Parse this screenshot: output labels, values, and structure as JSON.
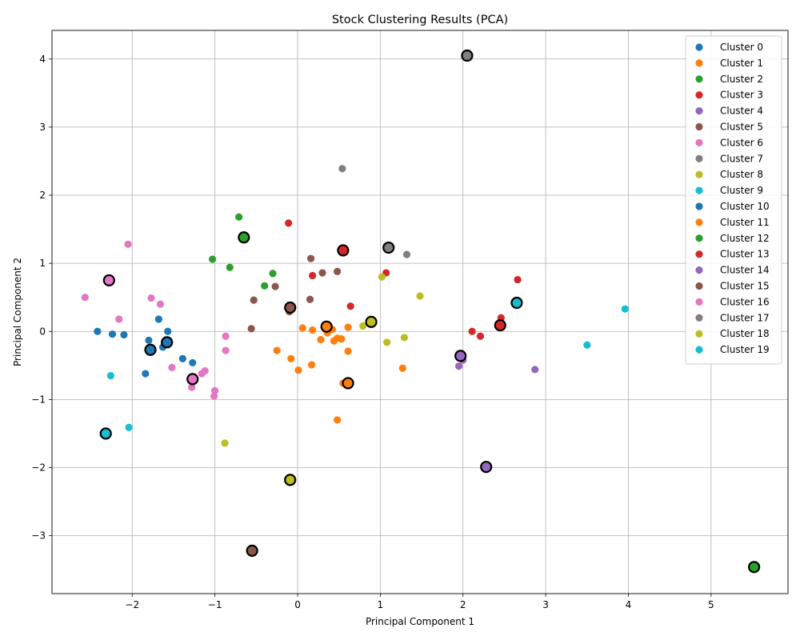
{
  "chart_data": {
    "type": "scatter",
    "title": "Stock Clustering Results (PCA)",
    "xlabel": "Principal Component 1",
    "ylabel": "Principal Component 2",
    "xlim": [
      -2.97,
      5.93
    ],
    "ylim": [
      -3.85,
      4.42
    ],
    "xticks": [
      -2,
      -1,
      0,
      1,
      2,
      3,
      4,
      5
    ],
    "yticks": [
      -3,
      -2,
      -1,
      0,
      1,
      2,
      3,
      4
    ],
    "grid": true,
    "legend_position": "top-right",
    "series": [
      {
        "name": "Cluster 0",
        "color": "#1f77b4",
        "points": [
          [
            -2.42,
            0.0
          ],
          [
            -2.24,
            -0.04
          ],
          [
            -2.1,
            -0.05
          ],
          [
            -1.8,
            -0.13
          ],
          [
            -1.63,
            -0.23
          ],
          [
            -1.57,
            0.0
          ],
          [
            -1.39,
            -0.4
          ],
          [
            -1.27,
            -0.46
          ],
          [
            -1.84,
            -0.62
          ],
          [
            -1.68,
            0.18
          ],
          [
            -1.56,
            -0.14
          ]
        ],
        "center": [
          -1.58,
          -0.16
        ]
      },
      {
        "name": "Cluster 1",
        "color": "#ff7f0e",
        "points": [
          [
            0.06,
            0.05
          ],
          [
            0.18,
            0.02
          ],
          [
            0.28,
            -0.12
          ],
          [
            0.36,
            -0.02
          ],
          [
            0.44,
            -0.14
          ],
          [
            0.53,
            -0.11
          ],
          [
            0.61,
            0.06
          ],
          [
            0.61,
            -0.29
          ],
          [
            -0.25,
            -0.28
          ],
          [
            -0.08,
            -0.4
          ],
          [
            0.01,
            -0.57
          ],
          [
            0.17,
            -0.49
          ],
          [
            1.27,
            -0.54
          ],
          [
            0.48,
            -1.3
          ],
          [
            0.55,
            -0.76
          ],
          [
            0.42,
            0.03
          ],
          [
            0.48,
            -0.1
          ]
        ],
        "center": [
          0.35,
          0.07
        ]
      },
      {
        "name": "Cluster 2",
        "color": "#2ca02c",
        "points": [
          [
            -0.71,
            1.68
          ],
          [
            -1.03,
            1.06
          ],
          [
            -0.82,
            0.94
          ],
          [
            -0.3,
            0.85
          ],
          [
            -0.4,
            0.67
          ],
          [
            -0.66,
            1.38
          ]
        ],
        "center": [
          -0.65,
          1.38
        ]
      },
      {
        "name": "Cluster 3",
        "color": "#d62728",
        "points": [
          [
            -0.11,
            1.59
          ],
          [
            0.18,
            0.82
          ],
          [
            0.64,
            0.37
          ],
          [
            1.07,
            0.86
          ],
          [
            0.55,
            1.19
          ]
        ],
        "center": [
          0.55,
          1.19
        ]
      },
      {
        "name": "Cluster 4",
        "color": "#9467bd",
        "points": [
          [
            1.95,
            -0.51
          ],
          [
            2.87,
            -0.56
          ],
          [
            1.97,
            -0.38
          ],
          [
            2.0,
            -0.42
          ]
        ],
        "center": [
          1.97,
          -0.36
        ]
      },
      {
        "name": "Cluster 5",
        "color": "#8c564b",
        "points": [
          [
            0.16,
            1.07
          ],
          [
            0.3,
            0.86
          ],
          [
            0.48,
            0.88
          ],
          [
            -0.27,
            0.66
          ],
          [
            -0.53,
            0.46
          ],
          [
            0.15,
            0.47
          ],
          [
            -0.56,
            0.04
          ],
          [
            -0.1,
            0.29
          ],
          [
            -0.09,
            0.35
          ]
        ],
        "center": [
          -0.09,
          0.35
        ]
      },
      {
        "name": "Cluster 6",
        "color": "#e377c2",
        "points": [
          [
            -2.05,
            1.28
          ],
          [
            -2.57,
            0.5
          ],
          [
            -2.16,
            0.18
          ],
          [
            -1.77,
            0.49
          ],
          [
            -1.66,
            0.4
          ],
          [
            -0.87,
            -0.07
          ],
          [
            -0.87,
            -0.28
          ],
          [
            -1.52,
            -0.53
          ],
          [
            -1.12,
            -0.58
          ],
          [
            -1.16,
            -0.62
          ],
          [
            -1.28,
            -0.82
          ],
          [
            -1.0,
            -0.87
          ],
          [
            -1.01,
            -0.95
          ],
          [
            -1.27,
            -0.7
          ],
          [
            -2.27,
            0.75
          ]
        ],
        "center": [
          -1.27,
          -0.7
        ]
      },
      {
        "name": "Cluster 7",
        "color": "#7f7f7f",
        "points": [
          [
            0.54,
            2.39
          ],
          [
            1.32,
            1.13
          ],
          [
            1.1,
            1.23
          ]
        ],
        "center": [
          1.1,
          1.23
        ]
      },
      {
        "name": "Cluster 8",
        "color": "#bcbd22",
        "points": [
          [
            1.48,
            0.52
          ],
          [
            1.02,
            0.8
          ],
          [
            0.79,
            0.08
          ],
          [
            1.08,
            -0.16
          ],
          [
            1.29,
            -0.09
          ],
          [
            0.9,
            0.14
          ],
          [
            -0.88,
            -1.64
          ],
          [
            -0.09,
            -2.18
          ]
        ],
        "center": [
          0.89,
          0.14
        ]
      },
      {
        "name": "Cluster 9",
        "color": "#17becf",
        "points": [
          [
            3.96,
            0.33
          ],
          [
            3.5,
            -0.2
          ],
          [
            2.65,
            0.42
          ],
          [
            -2.26,
            -0.65
          ],
          [
            -2.04,
            -1.41
          ],
          [
            -2.32,
            -1.5
          ]
        ],
        "center": [
          2.65,
          0.42
        ]
      },
      {
        "name": "Cluster 10",
        "color": "#1f77b4",
        "points": [
          [
            -1.78,
            -0.27
          ]
        ],
        "center": [
          -1.78,
          -0.27
        ]
      },
      {
        "name": "Cluster 11",
        "color": "#ff7f0e",
        "points": [
          [
            0.61,
            -0.76
          ]
        ],
        "center": [
          0.61,
          -0.76
        ]
      },
      {
        "name": "Cluster 12",
        "color": "#2ca02c",
        "points": [
          [
            5.52,
            -3.46
          ]
        ],
        "center": [
          5.52,
          -3.46
        ]
      },
      {
        "name": "Cluster 13",
        "color": "#d62728",
        "points": [
          [
            2.66,
            0.76
          ],
          [
            2.46,
            0.2
          ],
          [
            2.11,
            0.0
          ],
          [
            2.21,
            -0.07
          ],
          [
            2.46,
            0.09
          ]
        ],
        "center": [
          2.45,
          0.09
        ]
      },
      {
        "name": "Cluster 14",
        "color": "#9467bd",
        "points": [
          [
            2.28,
            -1.99
          ]
        ],
        "center": [
          2.28,
          -1.99
        ]
      },
      {
        "name": "Cluster 15",
        "color": "#8c564b",
        "points": [
          [
            -0.55,
            -3.22
          ]
        ],
        "center": [
          -0.55,
          -3.22
        ]
      },
      {
        "name": "Cluster 16",
        "color": "#e377c2",
        "points": [
          [
            -2.28,
            0.75
          ]
        ],
        "center": [
          -2.28,
          0.75
        ]
      },
      {
        "name": "Cluster 17",
        "color": "#7f7f7f",
        "points": [
          [
            2.05,
            4.05
          ]
        ],
        "center": [
          2.05,
          4.05
        ]
      },
      {
        "name": "Cluster 18",
        "color": "#bcbd22",
        "points": [
          [
            -0.09,
            -2.18
          ]
        ],
        "center": [
          -0.09,
          -2.18
        ]
      },
      {
        "name": "Cluster 19",
        "color": "#17becf",
        "points": [
          [
            -2.32,
            -1.5
          ]
        ],
        "center": [
          -2.32,
          -1.5
        ]
      }
    ]
  }
}
